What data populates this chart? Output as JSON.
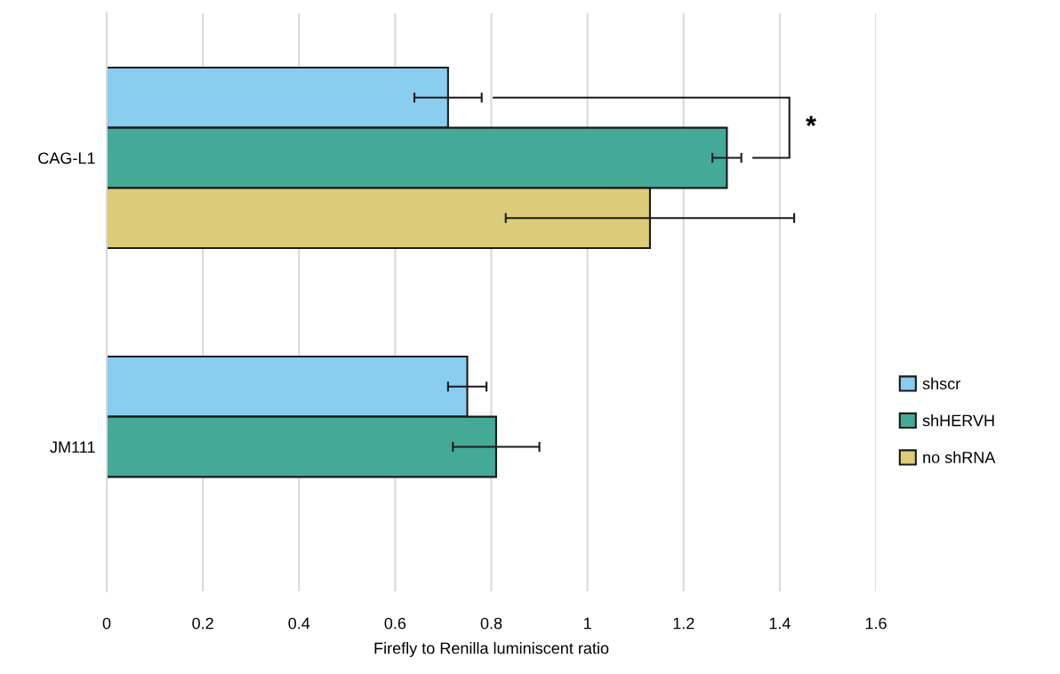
{
  "chart_data": {
    "type": "bar",
    "orientation": "horizontal",
    "categories": [
      "CAG-L1",
      "JM111"
    ],
    "series": [
      {
        "name": "shscr",
        "color": "#89cdef",
        "values": [
          0.71,
          0.75
        ],
        "errors": [
          0.07,
          0.04
        ]
      },
      {
        "name": "shHERVH",
        "color": "#45a998",
        "values": [
          1.29,
          0.81
        ],
        "errors": [
          0.03,
          0.09
        ]
      },
      {
        "name": "no shRNA",
        "color": "#dccc7a",
        "values": [
          1.13,
          null
        ],
        "errors": [
          0.3,
          null
        ]
      }
    ],
    "xlabel": "Firefly to Renilla luminiscent ratio",
    "xlim": [
      0,
      1.6
    ],
    "xticks": [
      0,
      0.2,
      0.4,
      0.6,
      0.8,
      1,
      1.2,
      1.4,
      1.6
    ],
    "grid": "x",
    "legend": "right",
    "annotations": [
      "*"
    ]
  }
}
